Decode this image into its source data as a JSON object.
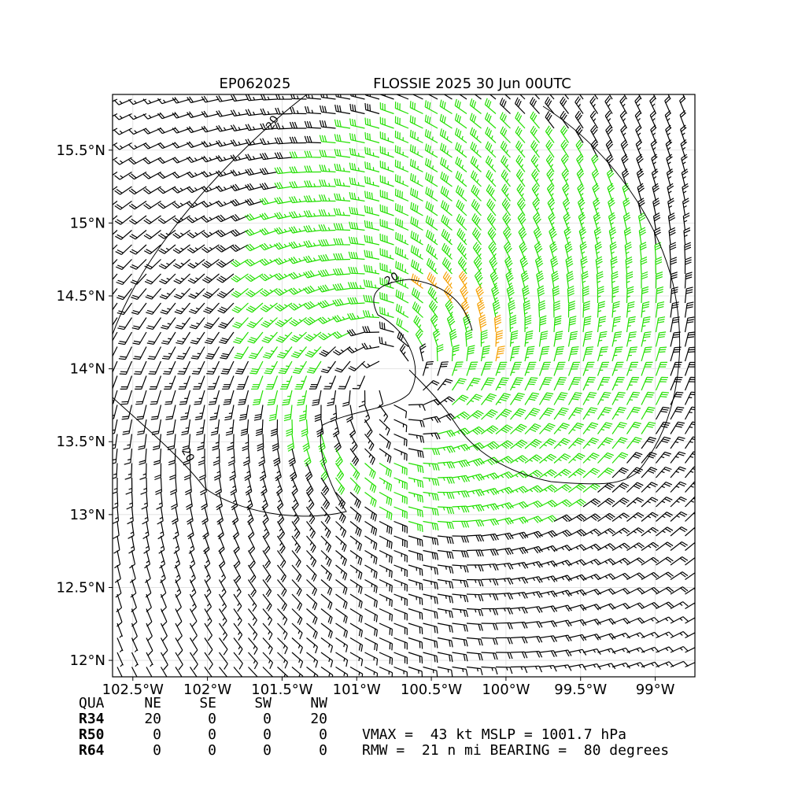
{
  "title": {
    "left": "EP062025",
    "right": "FLOSSIE 2025 30 Jun 00UTC"
  },
  "map": {
    "xlim": [
      -102.636,
      -98.734
    ],
    "ylim": [
      11.887,
      15.882
    ],
    "xticks": [
      {
        "value": -102.5,
        "label": "102.5°W"
      },
      {
        "value": -102,
        "label": "102°W"
      },
      {
        "value": -101.5,
        "label": "101.5°W"
      },
      {
        "value": -101,
        "label": "101°W"
      },
      {
        "value": -100.5,
        "label": "100.5°W"
      },
      {
        "value": -100,
        "label": "100°W"
      },
      {
        "value": -99.5,
        "label": "99.5°W"
      },
      {
        "value": -99,
        "label": "99°W"
      }
    ],
    "yticks": [
      {
        "value": 12,
        "label": "12°N"
      },
      {
        "value": 12.5,
        "label": "12.5°N"
      },
      {
        "value": 13,
        "label": "13°N"
      },
      {
        "value": 13.5,
        "label": "13.5°N"
      },
      {
        "value": 14,
        "label": "14°N"
      },
      {
        "value": 14.5,
        "label": "14.5°N"
      },
      {
        "value": 15,
        "label": "15°N"
      },
      {
        "value": 15.5,
        "label": "15.5°N"
      }
    ],
    "grid": true,
    "contour_labels": [
      "20",
      "20",
      "20"
    ]
  },
  "table": {
    "header": [
      "QUA",
      "NE",
      "SE",
      "SW",
      "NW"
    ],
    "rows": [
      [
        "R34",
        20,
        0,
        0,
        20
      ],
      [
        "R50",
        0,
        0,
        0,
        0
      ],
      [
        "R64",
        0,
        0,
        0,
        0
      ]
    ]
  },
  "info": [
    "VMAX =  43 kt MSLP = 1001.7 hPa",
    "RMW =  21 n mi BEARING =  80 degrees"
  ]
}
